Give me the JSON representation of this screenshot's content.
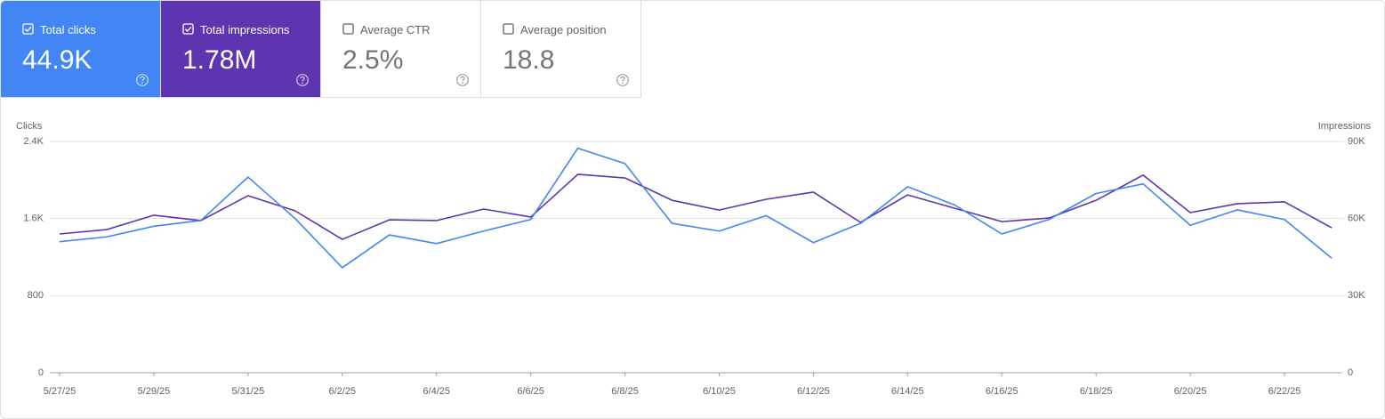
{
  "cards": [
    {
      "label": "Total clicks",
      "value": "44.9K",
      "checked": true,
      "color": "#4285f4"
    },
    {
      "label": "Total impressions",
      "value": "1.78M",
      "checked": true,
      "color": "#5e35b1"
    },
    {
      "label": "Average CTR",
      "value": "2.5%",
      "checked": false,
      "color": "#ffffff"
    },
    {
      "label": "Average position",
      "value": "18.8",
      "checked": false,
      "color": "#ffffff"
    }
  ],
  "chart_data": {
    "type": "line",
    "y_label": "Clicks",
    "y2_label": "Impressions",
    "categories": [
      "5/27/25",
      null,
      "5/29/25",
      null,
      "5/31/25",
      null,
      "6/2/25",
      null,
      "6/4/25",
      null,
      "6/6/25",
      null,
      "6/8/25",
      null,
      "6/10/25",
      null,
      "6/12/25",
      null,
      "6/14/25",
      null,
      "6/16/25",
      null,
      "6/18/25",
      null,
      "6/20/25",
      null,
      "6/22/25",
      null
    ],
    "series": [
      {
        "name": "Clicks",
        "color": "#4285f4",
        "values": [
          1360,
          1410,
          1520,
          1580,
          2030,
          1600,
          1090,
          1430,
          1340,
          1470,
          1590,
          2330,
          2170,
          1550,
          1470,
          1630,
          1350,
          1550,
          1930,
          1740,
          1440,
          1590,
          1860,
          1960,
          1530,
          1690,
          1590,
          1190
        ]
      },
      {
        "name": "Impressions",
        "color": "#5e35b1",
        "axis": "y2",
        "values": [
          54000,
          55700,
          61300,
          59200,
          68900,
          63000,
          51900,
          59500,
          59200,
          63700,
          60600,
          77200,
          75800,
          67100,
          63300,
          67500,
          70300,
          58500,
          69200,
          64000,
          58800,
          60200,
          67100,
          76900,
          62300,
          65800,
          66500,
          56400
        ]
      }
    ],
    "ylim": [
      0,
      2400
    ],
    "yticks": [
      0,
      800,
      {
        "value": 1600,
        "label": "1.6K"
      },
      {
        "value": 2400,
        "label": "2.4K"
      }
    ],
    "y2lim": [
      0,
      90000
    ],
    "y2ticks": [
      0,
      {
        "value": 30000,
        "label": "30K"
      },
      {
        "value": 60000,
        "label": "60K"
      },
      {
        "value": 90000,
        "label": "90K"
      }
    ],
    "grid": true
  }
}
